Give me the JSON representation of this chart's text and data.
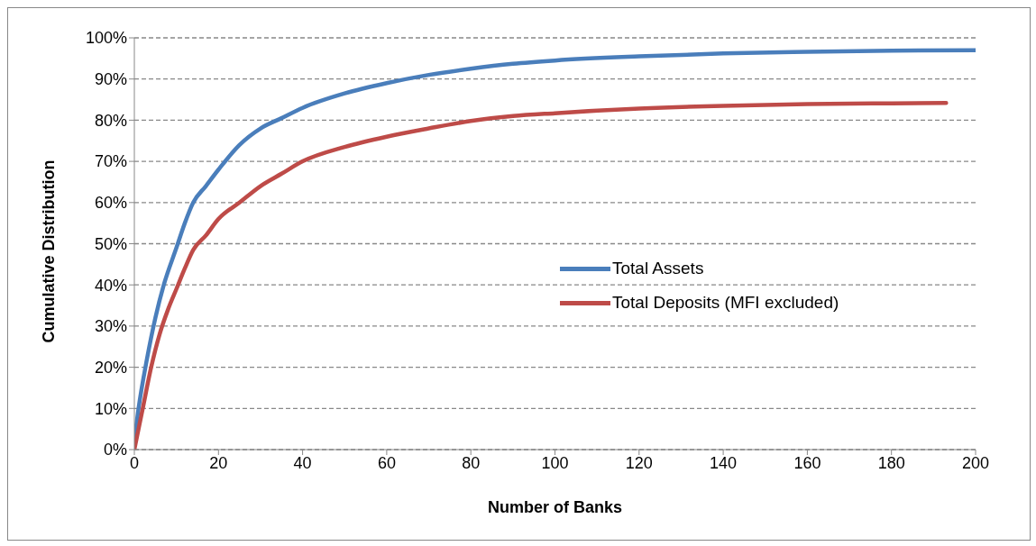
{
  "chart_data": {
    "type": "line",
    "xlabel": "Number of Banks",
    "ylabel": "Cumulative Distribution",
    "xlim": [
      0,
      200
    ],
    "xticks": [
      0,
      20,
      40,
      60,
      80,
      100,
      120,
      140,
      160,
      180,
      200
    ],
    "ylim": [
      0,
      1
    ],
    "yticks": [
      {
        "value": 0,
        "label": "0%"
      },
      {
        "value": 0.1,
        "label": "10%"
      },
      {
        "value": 0.2,
        "label": "20%"
      },
      {
        "value": 0.3,
        "label": "30%"
      },
      {
        "value": 0.4,
        "label": "40%"
      },
      {
        "value": 0.5,
        "label": "50%"
      },
      {
        "value": 0.6,
        "label": "60%"
      },
      {
        "value": 0.7,
        "label": "70%"
      },
      {
        "value": 0.8,
        "label": "80%"
      },
      {
        "value": 0.9,
        "label": "90%"
      },
      {
        "value": 1,
        "label": "100%"
      }
    ],
    "grid": "y",
    "legend": "right",
    "marker": "none",
    "line_style": "solid",
    "series": [
      {
        "name": "Total Assets",
        "color": "#4a7ebb",
        "x": [
          0,
          1,
          3,
          5,
          7,
          10,
          12,
          14,
          17,
          20,
          25,
          30,
          35,
          40,
          50,
          60,
          70,
          80,
          90,
          100,
          120,
          140,
          160,
          180,
          200
        ],
        "values": [
          0.02,
          0.1,
          0.22,
          0.32,
          0.4,
          0.49,
          0.55,
          0.6,
          0.64,
          0.68,
          0.74,
          0.78,
          0.805,
          0.83,
          0.865,
          0.89,
          0.91,
          0.925,
          0.937,
          0.945,
          0.955,
          0.962,
          0.966,
          0.969,
          0.97
        ]
      },
      {
        "name": "Total Deposits (MFI excluded)",
        "color": "#be4b48",
        "x": [
          0,
          2,
          4,
          6,
          8,
          10,
          12,
          14,
          17,
          20,
          25,
          30,
          35,
          40,
          50,
          60,
          70,
          80,
          90,
          100,
          120,
          140,
          160,
          180,
          193
        ],
        "values": [
          0,
          0.1,
          0.2,
          0.28,
          0.34,
          0.39,
          0.44,
          0.485,
          0.52,
          0.56,
          0.6,
          0.64,
          0.67,
          0.7,
          0.735,
          0.76,
          0.78,
          0.798,
          0.81,
          0.817,
          0.828,
          0.835,
          0.839,
          0.841,
          0.842
        ]
      }
    ]
  }
}
